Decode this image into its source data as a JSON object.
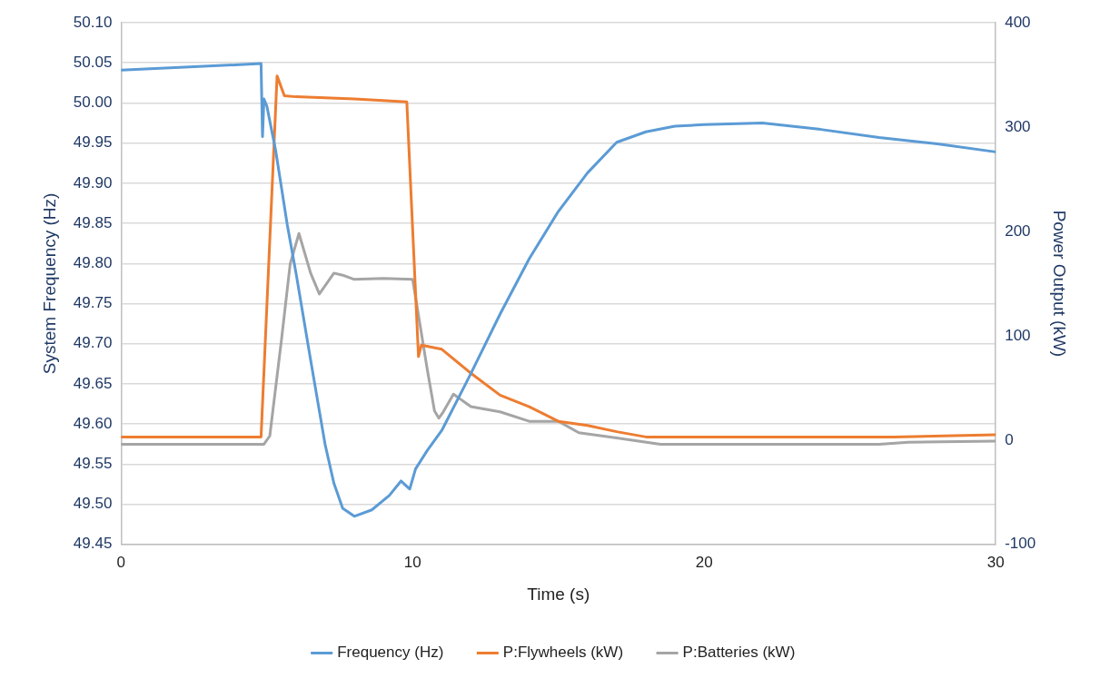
{
  "chart_data": {
    "type": "line",
    "xlabel": "Time (s)",
    "ylabel": "System Frequency (Hz)",
    "y2label": "Power Output (kW)",
    "xlim": [
      0,
      30
    ],
    "xticks": [
      0,
      10,
      20,
      30
    ],
    "ylim": [
      49.45,
      50.1
    ],
    "yticks": [
      {
        "value": 49.45,
        "label": "49.45"
      },
      {
        "value": 49.5,
        "label": "49.50"
      },
      {
        "value": 49.55,
        "label": "49.55"
      },
      {
        "value": 49.6,
        "label": "49.60"
      },
      {
        "value": 49.65,
        "label": "49.65"
      },
      {
        "value": 49.7,
        "label": "49.70"
      },
      {
        "value": 49.75,
        "label": "49.75"
      },
      {
        "value": 49.8,
        "label": "49.80"
      },
      {
        "value": 49.85,
        "label": "49.85"
      },
      {
        "value": 49.9,
        "label": "49.90"
      },
      {
        "value": 49.95,
        "label": "49.95"
      },
      {
        "value": 50,
        "label": "50.00"
      },
      {
        "value": 50.05,
        "label": "50.05"
      },
      {
        "value": 50.1,
        "label": "50.10"
      }
    ],
    "y2lim": [
      -100,
      400
    ],
    "y2ticks": [
      -100,
      0,
      100,
      200,
      300,
      400
    ],
    "grid": "y",
    "legend": "bottom",
    "marker": "none",
    "line_style": "solid",
    "series": [
      {
        "name": "Frequency (Hz)",
        "color": "#5b9bd5",
        "x": [
          0,
          4.8,
          4.85,
          4.9,
          5,
          5.3,
          5.7,
          6,
          6.5,
          7,
          7.3,
          7.6,
          8,
          8.6,
          9.2,
          9.6,
          9.9,
          10.1,
          10.5,
          11,
          12,
          13,
          14,
          15,
          16,
          17,
          18,
          19,
          20,
          22,
          24,
          26,
          28,
          30
        ],
        "values": [
          50.041,
          50.049,
          49.958,
          50.005,
          49.996,
          49.941,
          49.848,
          49.788,
          49.68,
          49.574,
          49.526,
          49.495,
          49.485,
          49.493,
          49.511,
          49.529,
          49.519,
          49.544,
          49.567,
          49.592,
          49.663,
          49.737,
          49.806,
          49.865,
          49.913,
          49.951,
          49.964,
          49.971,
          49.973,
          49.975,
          49.967,
          49.957,
          49.949,
          49.939
        ]
      },
      {
        "name": "P:Flywheels (kW)",
        "color": "#ed7d31",
        "axis": "y2",
        "x": [
          0,
          4.8,
          5.35,
          5.6,
          6,
          8,
          9.8,
          10.2,
          10.3,
          11,
          12,
          13,
          14,
          15,
          16,
          17,
          18,
          26.5,
          30
        ],
        "values": [
          3,
          3,
          349,
          330,
          329,
          327,
          324,
          80,
          91,
          87,
          64,
          43,
          32,
          18,
          14,
          8,
          3,
          3,
          5
        ]
      },
      {
        "name": "P:Batteries (kW)",
        "color": "#a5a5a5",
        "axis": "y2",
        "x": [
          0,
          4.9,
          5.1,
          5.5,
          5.8,
          6.1,
          6.5,
          6.8,
          7.3,
          7.6,
          8,
          9,
          10,
          10.5,
          10.75,
          10.9,
          11.05,
          11.4,
          12,
          13,
          14,
          15,
          15.7,
          17,
          18.5,
          26,
          27,
          30
        ],
        "values": [
          -4,
          -4,
          4,
          96,
          169,
          198,
          160,
          140,
          160,
          158,
          154,
          155,
          154,
          68,
          28,
          21,
          27,
          44,
          32,
          27,
          18,
          18,
          7,
          2,
          -4,
          -4,
          -2,
          -1
        ]
      }
    ]
  }
}
